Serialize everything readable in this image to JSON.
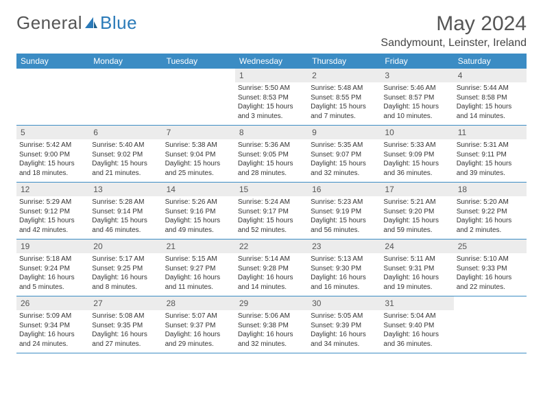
{
  "brand": {
    "word1": "General",
    "word2": "Blue"
  },
  "title": "May 2024",
  "location": "Sandymount, Leinster, Ireland",
  "colors": {
    "header_bg": "#3b8cc4",
    "header_text": "#ffffff",
    "daynum_bg": "#ececec",
    "border": "#3b8cc4",
    "brand_gray": "#555555",
    "brand_blue": "#2a7ab8"
  },
  "weekdays": [
    "Sunday",
    "Monday",
    "Tuesday",
    "Wednesday",
    "Thursday",
    "Friday",
    "Saturday"
  ],
  "weeks": [
    [
      {
        "n": "",
        "sunrise": "",
        "sunset": "",
        "daylight": ""
      },
      {
        "n": "",
        "sunrise": "",
        "sunset": "",
        "daylight": ""
      },
      {
        "n": "",
        "sunrise": "",
        "sunset": "",
        "daylight": ""
      },
      {
        "n": "1",
        "sunrise": "Sunrise: 5:50 AM",
        "sunset": "Sunset: 8:53 PM",
        "daylight": "Daylight: 15 hours and 3 minutes."
      },
      {
        "n": "2",
        "sunrise": "Sunrise: 5:48 AM",
        "sunset": "Sunset: 8:55 PM",
        "daylight": "Daylight: 15 hours and 7 minutes."
      },
      {
        "n": "3",
        "sunrise": "Sunrise: 5:46 AM",
        "sunset": "Sunset: 8:57 PM",
        "daylight": "Daylight: 15 hours and 10 minutes."
      },
      {
        "n": "4",
        "sunrise": "Sunrise: 5:44 AM",
        "sunset": "Sunset: 8:58 PM",
        "daylight": "Daylight: 15 hours and 14 minutes."
      }
    ],
    [
      {
        "n": "5",
        "sunrise": "Sunrise: 5:42 AM",
        "sunset": "Sunset: 9:00 PM",
        "daylight": "Daylight: 15 hours and 18 minutes."
      },
      {
        "n": "6",
        "sunrise": "Sunrise: 5:40 AM",
        "sunset": "Sunset: 9:02 PM",
        "daylight": "Daylight: 15 hours and 21 minutes."
      },
      {
        "n": "7",
        "sunrise": "Sunrise: 5:38 AM",
        "sunset": "Sunset: 9:04 PM",
        "daylight": "Daylight: 15 hours and 25 minutes."
      },
      {
        "n": "8",
        "sunrise": "Sunrise: 5:36 AM",
        "sunset": "Sunset: 9:05 PM",
        "daylight": "Daylight: 15 hours and 28 minutes."
      },
      {
        "n": "9",
        "sunrise": "Sunrise: 5:35 AM",
        "sunset": "Sunset: 9:07 PM",
        "daylight": "Daylight: 15 hours and 32 minutes."
      },
      {
        "n": "10",
        "sunrise": "Sunrise: 5:33 AM",
        "sunset": "Sunset: 9:09 PM",
        "daylight": "Daylight: 15 hours and 36 minutes."
      },
      {
        "n": "11",
        "sunrise": "Sunrise: 5:31 AM",
        "sunset": "Sunset: 9:11 PM",
        "daylight": "Daylight: 15 hours and 39 minutes."
      }
    ],
    [
      {
        "n": "12",
        "sunrise": "Sunrise: 5:29 AM",
        "sunset": "Sunset: 9:12 PM",
        "daylight": "Daylight: 15 hours and 42 minutes."
      },
      {
        "n": "13",
        "sunrise": "Sunrise: 5:28 AM",
        "sunset": "Sunset: 9:14 PM",
        "daylight": "Daylight: 15 hours and 46 minutes."
      },
      {
        "n": "14",
        "sunrise": "Sunrise: 5:26 AM",
        "sunset": "Sunset: 9:16 PM",
        "daylight": "Daylight: 15 hours and 49 minutes."
      },
      {
        "n": "15",
        "sunrise": "Sunrise: 5:24 AM",
        "sunset": "Sunset: 9:17 PM",
        "daylight": "Daylight: 15 hours and 52 minutes."
      },
      {
        "n": "16",
        "sunrise": "Sunrise: 5:23 AM",
        "sunset": "Sunset: 9:19 PM",
        "daylight": "Daylight: 15 hours and 56 minutes."
      },
      {
        "n": "17",
        "sunrise": "Sunrise: 5:21 AM",
        "sunset": "Sunset: 9:20 PM",
        "daylight": "Daylight: 15 hours and 59 minutes."
      },
      {
        "n": "18",
        "sunrise": "Sunrise: 5:20 AM",
        "sunset": "Sunset: 9:22 PM",
        "daylight": "Daylight: 16 hours and 2 minutes."
      }
    ],
    [
      {
        "n": "19",
        "sunrise": "Sunrise: 5:18 AM",
        "sunset": "Sunset: 9:24 PM",
        "daylight": "Daylight: 16 hours and 5 minutes."
      },
      {
        "n": "20",
        "sunrise": "Sunrise: 5:17 AM",
        "sunset": "Sunset: 9:25 PM",
        "daylight": "Daylight: 16 hours and 8 minutes."
      },
      {
        "n": "21",
        "sunrise": "Sunrise: 5:15 AM",
        "sunset": "Sunset: 9:27 PM",
        "daylight": "Daylight: 16 hours and 11 minutes."
      },
      {
        "n": "22",
        "sunrise": "Sunrise: 5:14 AM",
        "sunset": "Sunset: 9:28 PM",
        "daylight": "Daylight: 16 hours and 14 minutes."
      },
      {
        "n": "23",
        "sunrise": "Sunrise: 5:13 AM",
        "sunset": "Sunset: 9:30 PM",
        "daylight": "Daylight: 16 hours and 16 minutes."
      },
      {
        "n": "24",
        "sunrise": "Sunrise: 5:11 AM",
        "sunset": "Sunset: 9:31 PM",
        "daylight": "Daylight: 16 hours and 19 minutes."
      },
      {
        "n": "25",
        "sunrise": "Sunrise: 5:10 AM",
        "sunset": "Sunset: 9:33 PM",
        "daylight": "Daylight: 16 hours and 22 minutes."
      }
    ],
    [
      {
        "n": "26",
        "sunrise": "Sunrise: 5:09 AM",
        "sunset": "Sunset: 9:34 PM",
        "daylight": "Daylight: 16 hours and 24 minutes."
      },
      {
        "n": "27",
        "sunrise": "Sunrise: 5:08 AM",
        "sunset": "Sunset: 9:35 PM",
        "daylight": "Daylight: 16 hours and 27 minutes."
      },
      {
        "n": "28",
        "sunrise": "Sunrise: 5:07 AM",
        "sunset": "Sunset: 9:37 PM",
        "daylight": "Daylight: 16 hours and 29 minutes."
      },
      {
        "n": "29",
        "sunrise": "Sunrise: 5:06 AM",
        "sunset": "Sunset: 9:38 PM",
        "daylight": "Daylight: 16 hours and 32 minutes."
      },
      {
        "n": "30",
        "sunrise": "Sunrise: 5:05 AM",
        "sunset": "Sunset: 9:39 PM",
        "daylight": "Daylight: 16 hours and 34 minutes."
      },
      {
        "n": "31",
        "sunrise": "Sunrise: 5:04 AM",
        "sunset": "Sunset: 9:40 PM",
        "daylight": "Daylight: 16 hours and 36 minutes."
      },
      {
        "n": "",
        "sunrise": "",
        "sunset": "",
        "daylight": ""
      }
    ]
  ]
}
